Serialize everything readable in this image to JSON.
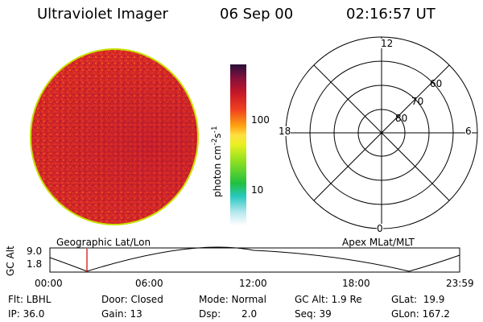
{
  "header": {
    "instrument": "Ultraviolet Imager",
    "date": "06 Sep 00",
    "time": "02:16:57 UT"
  },
  "colorbar": {
    "unit_main": "photon cm",
    "unit_exp1": "-2",
    "unit_mid": "s",
    "unit_exp2": "-1",
    "ticks": [
      "100",
      "10"
    ]
  },
  "polar_plot": {
    "mlt_labels": {
      "top": "12",
      "left": "18",
      "right": "6",
      "bottom": "0"
    },
    "lat_labels": [
      "60",
      "70",
      "80"
    ],
    "label": "Apex MLat/MLT"
  },
  "orbit_plot": {
    "left_label": "Geographic Lat/Lon",
    "right_label": "Apex MLat/MLT",
    "ylabel": "GC Alt",
    "yticks": [
      "9.0",
      "1.8"
    ],
    "xticks": [
      "00:00",
      "06:00",
      "12:00",
      "18:00",
      "23:59"
    ]
  },
  "info": {
    "row1": {
      "filter": "Flt: LBHL",
      "door": "Door: Closed",
      "mode": "Mode: Normal",
      "gc_alt": "GC Alt: 1.9 Re",
      "glat": "GLat:  19.9"
    },
    "row2": {
      "ip": "IP: 36.0",
      "gain": "Gain: 13",
      "dsp_label": "Dsp:",
      "dsp_value": "2.0",
      "seq": "Seq: 39",
      "glon": "GLon: 167.2"
    }
  },
  "colors": {
    "background": "#ffffff",
    "line": "#000000",
    "limb": "#c8e000",
    "marker": "#d00000"
  }
}
